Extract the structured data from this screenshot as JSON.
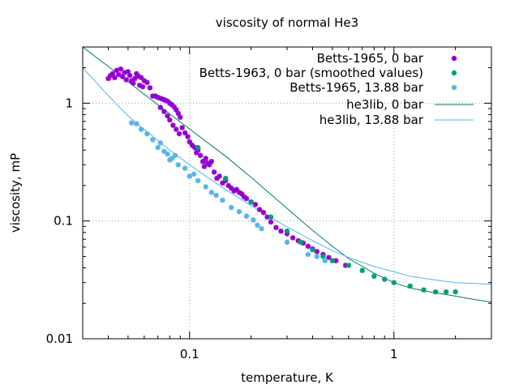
{
  "chart_data": {
    "type": "scatter",
    "title": "viscosity of normal He3",
    "xlabel": "temperature, K",
    "ylabel": "viscosity, mP",
    "x_scale": "log",
    "y_scale": "log",
    "xlim": [
      0.03,
      3
    ],
    "ylim": [
      0.01,
      3
    ],
    "grid": true,
    "legend_position": "top-right",
    "x_ticks": [
      {
        "value": 0.1,
        "label": "0.1"
      },
      {
        "value": 1,
        "label": "1"
      }
    ],
    "y_ticks": [
      {
        "value": 0.01,
        "label": "0.01"
      },
      {
        "value": 0.1,
        "label": "0.1"
      },
      {
        "value": 1,
        "label": "1"
      }
    ],
    "series": [
      {
        "name": "Betts-1965, 0 bar",
        "kind": "points",
        "color": "#9400d3",
        "points": [
          [
            0.04,
            1.62
          ],
          [
            0.041,
            1.72
          ],
          [
            0.042,
            1.78
          ],
          [
            0.043,
            1.65
          ],
          [
            0.044,
            1.9
          ],
          [
            0.045,
            1.75
          ],
          [
            0.046,
            1.95
          ],
          [
            0.047,
            1.68
          ],
          [
            0.048,
            1.82
          ],
          [
            0.049,
            1.58
          ],
          [
            0.05,
            1.85
          ],
          [
            0.051,
            1.72
          ],
          [
            0.052,
            1.55
          ],
          [
            0.053,
            1.48
          ],
          [
            0.054,
            1.62
          ],
          [
            0.055,
            1.78
          ],
          [
            0.056,
            1.7
          ],
          [
            0.057,
            1.42
          ],
          [
            0.058,
            1.65
          ],
          [
            0.059,
            1.38
          ],
          [
            0.06,
            1.55
          ],
          [
            0.062,
            1.5
          ],
          [
            0.064,
            1.35
          ],
          [
            0.066,
            1.15
          ],
          [
            0.068,
            1.15
          ],
          [
            0.07,
            1.12
          ],
          [
            0.072,
            1.1
          ],
          [
            0.074,
            1.08
          ],
          [
            0.076,
            1.06
          ],
          [
            0.078,
            1.04
          ],
          [
            0.08,
            1.0
          ],
          [
            0.082,
            0.97
          ],
          [
            0.084,
            0.93
          ],
          [
            0.086,
            0.88
          ],
          [
            0.088,
            0.82
          ],
          [
            0.09,
            0.76
          ],
          [
            0.072,
            0.92
          ],
          [
            0.075,
            0.85
          ],
          [
            0.078,
            0.78
          ],
          [
            0.08,
            0.72
          ],
          [
            0.083,
            0.65
          ],
          [
            0.086,
            0.6
          ],
          [
            0.089,
            0.55
          ],
          [
            0.092,
            0.62
          ],
          [
            0.095,
            0.56
          ],
          [
            0.098,
            0.52
          ],
          [
            0.1,
            0.47
          ],
          [
            0.103,
            0.44
          ],
          [
            0.106,
            0.42
          ],
          [
            0.108,
            0.38
          ],
          [
            0.11,
            0.4
          ],
          [
            0.113,
            0.36
          ],
          [
            0.116,
            0.32
          ],
          [
            0.118,
            0.29
          ],
          [
            0.12,
            0.34
          ],
          [
            0.122,
            0.31
          ],
          [
            0.125,
            0.3
          ],
          [
            0.128,
            0.32
          ],
          [
            0.132,
            0.26
          ],
          [
            0.136,
            0.23
          ],
          [
            0.14,
            0.24
          ],
          [
            0.145,
            0.21
          ],
          [
            0.15,
            0.22
          ],
          [
            0.155,
            0.2
          ],
          [
            0.16,
            0.19
          ],
          [
            0.165,
            0.18
          ],
          [
            0.17,
            0.185
          ],
          [
            0.175,
            0.175
          ],
          [
            0.18,
            0.17
          ],
          [
            0.185,
            0.16
          ],
          [
            0.19,
            0.155
          ],
          [
            0.2,
            0.145
          ],
          [
            0.21,
            0.138
          ],
          [
            0.22,
            0.125
          ],
          [
            0.23,
            0.118
          ],
          [
            0.24,
            0.108
          ],
          [
            0.25,
            0.098
          ],
          [
            0.265,
            0.088
          ],
          [
            0.28,
            0.082
          ],
          [
            0.3,
            0.078
          ],
          [
            0.32,
            0.072
          ],
          [
            0.34,
            0.068
          ],
          [
            0.36,
            0.065
          ],
          [
            0.38,
            0.061
          ],
          [
            0.4,
            0.058
          ],
          [
            0.42,
            0.055
          ],
          [
            0.45,
            0.052
          ],
          [
            0.48,
            0.049
          ],
          [
            0.52,
            0.046
          ],
          [
            0.58,
            0.042
          ]
        ]
      },
      {
        "name": "Betts-1963, 0 bar (smoothed values)",
        "kind": "points",
        "color": "#009e73",
        "points": [
          [
            0.11,
            0.42
          ],
          [
            0.15,
            0.23
          ],
          [
            0.2,
            0.145
          ],
          [
            0.25,
            0.108
          ],
          [
            0.3,
            0.082
          ],
          [
            0.35,
            0.066
          ],
          [
            0.4,
            0.057
          ],
          [
            0.45,
            0.05
          ],
          [
            0.5,
            0.046
          ],
          [
            0.6,
            0.042
          ],
          [
            0.7,
            0.038
          ],
          [
            0.8,
            0.034
          ],
          [
            0.9,
            0.032
          ],
          [
            1.0,
            0.03
          ],
          [
            1.2,
            0.028
          ],
          [
            1.4,
            0.026
          ],
          [
            1.6,
            0.025
          ],
          [
            1.8,
            0.025
          ],
          [
            2.0,
            0.025
          ]
        ]
      },
      {
        "name": "Betts-1965, 13.88 bar",
        "kind": "points",
        "color": "#56b4e9",
        "points": [
          [
            0.052,
            0.68
          ],
          [
            0.055,
            0.67
          ],
          [
            0.058,
            0.6
          ],
          [
            0.062,
            0.55
          ],
          [
            0.066,
            0.49
          ],
          [
            0.07,
            0.42
          ],
          [
            0.072,
            0.46
          ],
          [
            0.075,
            0.39
          ],
          [
            0.078,
            0.37
          ],
          [
            0.08,
            0.33
          ],
          [
            0.082,
            0.34
          ],
          [
            0.085,
            0.36
          ],
          [
            0.088,
            0.3
          ],
          [
            0.095,
            0.28
          ],
          [
            0.1,
            0.24
          ],
          [
            0.105,
            0.25
          ],
          [
            0.11,
            0.22
          ],
          [
            0.12,
            0.195
          ],
          [
            0.128,
            0.175
          ],
          [
            0.135,
            0.165
          ],
          [
            0.145,
            0.15
          ],
          [
            0.16,
            0.13
          ],
          [
            0.175,
            0.12
          ],
          [
            0.19,
            0.11
          ],
          [
            0.205,
            0.102
          ],
          [
            0.215,
            0.092
          ],
          [
            0.225,
            0.086
          ],
          [
            0.3,
            0.066
          ],
          [
            0.38,
            0.052
          ],
          [
            0.42,
            0.05
          ],
          [
            0.46,
            0.046
          ]
        ]
      },
      {
        "name": "he3lib, 0 bar",
        "kind": "line",
        "color": "#007d5f",
        "x": [
          0.03,
          0.04,
          0.05,
          0.06,
          0.08,
          0.1,
          0.12,
          0.15,
          0.2,
          0.25,
          0.3,
          0.4,
          0.5,
          0.6,
          0.8,
          1.0,
          1.2,
          1.5,
          2.0,
          2.5,
          3.0
        ],
        "y": [
          3.0,
          2.05,
          1.52,
          1.19,
          0.81,
          0.605,
          0.475,
          0.355,
          0.235,
          0.168,
          0.128,
          0.083,
          0.061,
          0.048,
          0.036,
          0.03,
          0.027,
          0.025,
          0.023,
          0.0215,
          0.0205
        ]
      },
      {
        "name": "he3lib, 13.88 bar",
        "kind": "line",
        "color": "#56b4e9",
        "x": [
          0.03,
          0.04,
          0.05,
          0.06,
          0.08,
          0.1,
          0.12,
          0.15,
          0.2,
          0.25,
          0.3,
          0.4,
          0.5,
          0.6,
          0.8,
          1.0,
          1.2,
          1.5,
          2.0,
          2.5,
          3.0
        ],
        "y": [
          2.0,
          1.16,
          0.78,
          0.6,
          0.4,
          0.3,
          0.24,
          0.185,
          0.135,
          0.107,
          0.089,
          0.068,
          0.056,
          0.049,
          0.041,
          0.037,
          0.034,
          0.032,
          0.03,
          0.0295,
          0.029
        ]
      }
    ]
  }
}
